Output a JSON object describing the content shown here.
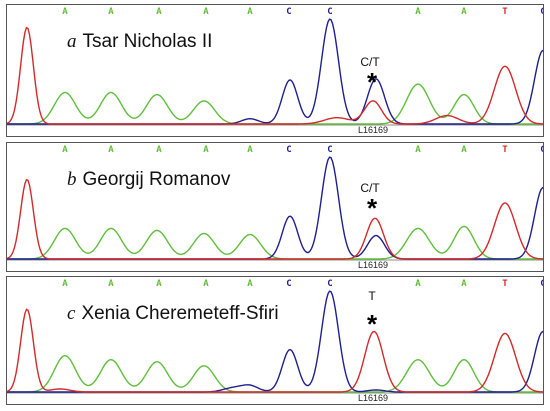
{
  "colors": {
    "A": "#5fbf3a",
    "C": "#1f1f8f",
    "T": "#d22a2a",
    "G": "#111111"
  },
  "panels": [
    {
      "letter": "a",
      "name": "Tsar Nicholas II",
      "call": "C/T",
      "star": "*",
      "position_label": "L16169",
      "bases": [
        "A",
        "A",
        "A",
        "A",
        "A",
        "C",
        "C",
        "A",
        "A",
        "T",
        "C"
      ]
    },
    {
      "letter": "b",
      "name": "Georgij Romanov",
      "call": "C/T",
      "star": "*",
      "position_label": "L16169",
      "bases": [
        "A",
        "A",
        "A",
        "A",
        "A",
        "C",
        "C",
        "A",
        "A",
        "T",
        "C"
      ]
    },
    {
      "letter": "c",
      "name": "Xenia Cheremeteff-Sfiri",
      "call": "T",
      "star": "*",
      "position_label": "L16169",
      "bases": [
        "A",
        "A",
        "A",
        "A",
        "A",
        "C",
        "C",
        "A",
        "A",
        "T",
        "C"
      ]
    }
  ]
}
